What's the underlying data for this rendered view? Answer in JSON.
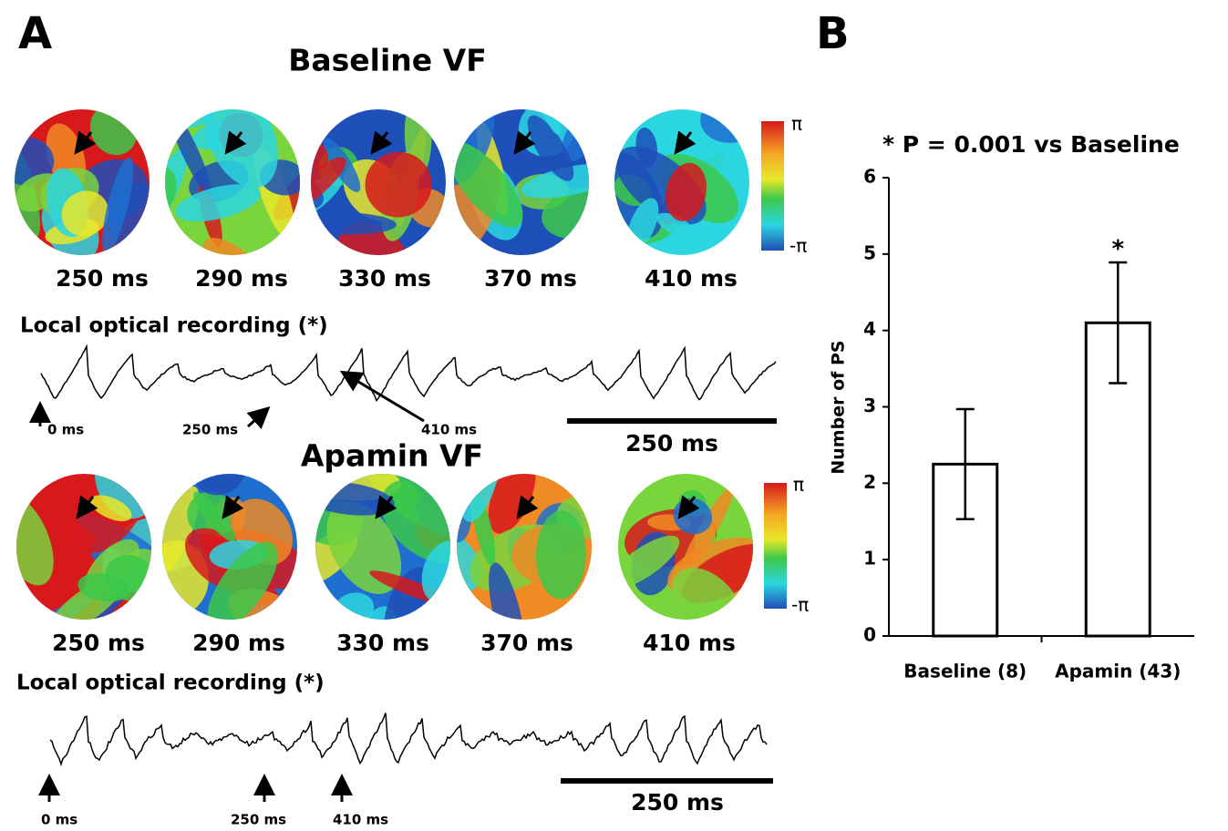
{
  "panel_a": {
    "label": "A",
    "colorbar": {
      "max": "π",
      "min": "-π"
    },
    "baseline": {
      "title": "Baseline VF",
      "frames": [
        "250 ms",
        "290 ms",
        "330 ms",
        "370 ms",
        "410 ms"
      ],
      "recording_label": "Local optical recording (*)",
      "time_markers": [
        "0 ms",
        "250 ms",
        "410 ms"
      ],
      "scale_bar": "250 ms"
    },
    "apamin": {
      "title": "Apamin VF",
      "frames": [
        "250 ms",
        "290 ms",
        "330 ms",
        "370 ms",
        "410 ms"
      ],
      "recording_label": "Local optical recording (*)",
      "time_markers": [
        "0 ms",
        "250 ms",
        "410 ms"
      ],
      "scale_bar": "250 ms"
    }
  },
  "chart_data": {
    "type": "bar",
    "panel_label": "B",
    "annotation": "* P = 0.001 vs Baseline",
    "categories": [
      "Baseline (8)",
      "Apamin (43)"
    ],
    "values": [
      2.25,
      4.1
    ],
    "errors": [
      0.72,
      0.79
    ],
    "significance": [
      null,
      "*"
    ],
    "color": "#ffffff",
    "y_label": "Number of PS",
    "ylim": [
      0,
      6
    ],
    "yticks": [
      0,
      1,
      2,
      3,
      4,
      5,
      6
    ]
  }
}
